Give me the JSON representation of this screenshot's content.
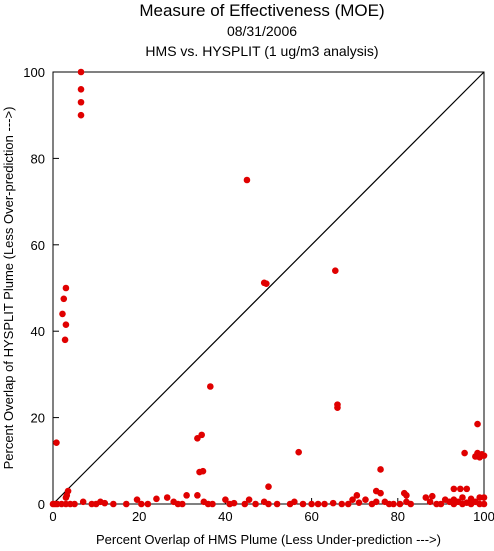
{
  "chart_data": {
    "type": "scatter",
    "title": "Measure of Effectiveness (MOE)",
    "subtitle": "08/31/2006",
    "subtitle2": "HMS vs. HYSPLIT  (1 ug/m3 analysis)",
    "xlabel": "Percent Overlap of HMS Plume (Less Under-prediction --->)",
    "ylabel": "Percent Overlap of HYSPLIT Plume (Less Over-prediction --->)",
    "xlim": [
      0,
      100
    ],
    "ylim": [
      0,
      100
    ],
    "xticks": [
      "0",
      "20",
      "40",
      "60",
      "80",
      "100"
    ],
    "yticks": [
      "0",
      "20",
      "40",
      "60",
      "80",
      "100"
    ],
    "grid": false,
    "reference_line": "y = x",
    "point_color": "#e00000",
    "line_color": "#000000",
    "points": [
      [
        6.5,
        100
      ],
      [
        6.5,
        96
      ],
      [
        6.5,
        93
      ],
      [
        6.5,
        90
      ],
      [
        45,
        75
      ],
      [
        3,
        50
      ],
      [
        2.5,
        47.5
      ],
      [
        2.2,
        44
      ],
      [
        3,
        41.5
      ],
      [
        2.8,
        38
      ],
      [
        49,
        51.2
      ],
      [
        49.5,
        51
      ],
      [
        65.5,
        54
      ],
      [
        36.5,
        27.2
      ],
      [
        66,
        23
      ],
      [
        66,
        22.3
      ],
      [
        34.5,
        16
      ],
      [
        33.5,
        15.2
      ],
      [
        34.8,
        7.6
      ],
      [
        34,
        7.4
      ],
      [
        57,
        12
      ],
      [
        0.8,
        14.2
      ],
      [
        76,
        8
      ],
      [
        98.5,
        18.5
      ],
      [
        98.5,
        11.8
      ],
      [
        99.5,
        11.5
      ],
      [
        98,
        11
      ],
      [
        99,
        10.8
      ],
      [
        100,
        11.2
      ],
      [
        95.5,
        11.8
      ],
      [
        50,
        4
      ],
      [
        3.5,
        3
      ],
      [
        3.2,
        2
      ],
      [
        3,
        1.5
      ],
      [
        75,
        3
      ],
      [
        76,
        2.5
      ],
      [
        81.5,
        2.5
      ],
      [
        82,
        2
      ],
      [
        93,
        3.5
      ],
      [
        94.5,
        3.5
      ],
      [
        96,
        3.5
      ],
      [
        93,
        1
      ],
      [
        95,
        1.5
      ],
      [
        97,
        1.2
      ],
      [
        99,
        1.5
      ],
      [
        100,
        1.5
      ],
      [
        0,
        0
      ],
      [
        0.5,
        0
      ],
      [
        1,
        0
      ],
      [
        2,
        0
      ],
      [
        3,
        0
      ],
      [
        4,
        0
      ],
      [
        5,
        0
      ],
      [
        7,
        0.5
      ],
      [
        9,
        0
      ],
      [
        10,
        0
      ],
      [
        11,
        0.5
      ],
      [
        12,
        0.2
      ],
      [
        14,
        0
      ],
      [
        17,
        0
      ],
      [
        19.5,
        1
      ],
      [
        20.5,
        0
      ],
      [
        22,
        0
      ],
      [
        24,
        1.2
      ],
      [
        26.5,
        1.5
      ],
      [
        28,
        0.5
      ],
      [
        29,
        0
      ],
      [
        30,
        0
      ],
      [
        31,
        2
      ],
      [
        33.5,
        2
      ],
      [
        35,
        0.5
      ],
      [
        36,
        0
      ],
      [
        37,
        0
      ],
      [
        40,
        1
      ],
      [
        41,
        0
      ],
      [
        42,
        0.2
      ],
      [
        44.5,
        0
      ],
      [
        45.5,
        1
      ],
      [
        47,
        0
      ],
      [
        49,
        0.5
      ],
      [
        50,
        0
      ],
      [
        52,
        0
      ],
      [
        55,
        0
      ],
      [
        56,
        0.5
      ],
      [
        58,
        0
      ],
      [
        60,
        0
      ],
      [
        61.5,
        0
      ],
      [
        63,
        0
      ],
      [
        65,
        0.2
      ],
      [
        67,
        0
      ],
      [
        68.5,
        0
      ],
      [
        69.5,
        1
      ],
      [
        70.5,
        2
      ],
      [
        71,
        0.3
      ],
      [
        72.5,
        1
      ],
      [
        74,
        0
      ],
      [
        75,
        0.5
      ],
      [
        77,
        0.5
      ],
      [
        78,
        0
      ],
      [
        79,
        0
      ],
      [
        80.5,
        0
      ],
      [
        82,
        0.5
      ],
      [
        83,
        0
      ],
      [
        86.5,
        1.5
      ],
      [
        87.5,
        0.5
      ],
      [
        88,
        1.8
      ],
      [
        89,
        0
      ],
      [
        90,
        0
      ],
      [
        91,
        1
      ],
      [
        92,
        0.5
      ],
      [
        93,
        0
      ],
      [
        94,
        0.5
      ],
      [
        95,
        0
      ],
      [
        96,
        0.3
      ],
      [
        97,
        0
      ],
      [
        98,
        0.5
      ],
      [
        99,
        0
      ],
      [
        100,
        0
      ]
    ]
  }
}
